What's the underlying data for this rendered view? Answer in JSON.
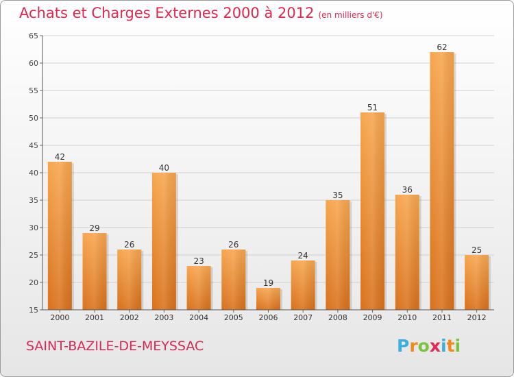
{
  "header": {
    "title": "Achats et Charges Externes 2000 à 2012",
    "unit": "(en milliers d'€)"
  },
  "footer": {
    "commune": "SAINT-BAZILE-DE-MEYSSAC",
    "logo_letters": [
      "P",
      "r",
      "o",
      "x",
      "i",
      "t",
      "i"
    ],
    "logo_colors": [
      "#3ab0e0",
      "#f08a1a",
      "#7cc242",
      "#e02a55",
      "#3ab0e0",
      "#f08a1a",
      "#7cc242"
    ]
  },
  "chart_data": {
    "type": "bar",
    "categories": [
      "2000",
      "2001",
      "2002",
      "2003",
      "2004",
      "2005",
      "2006",
      "2007",
      "2008",
      "2009",
      "2010",
      "2011",
      "2012"
    ],
    "values": [
      42,
      29,
      26,
      40,
      23,
      26,
      19,
      24,
      35,
      51,
      36,
      62,
      25
    ],
    "title": "Achats et Charges Externes 2000 à 2012",
    "subtitle": "(en milliers d'€)",
    "xlabel": "",
    "ylabel": "",
    "ylim": [
      15,
      65
    ],
    "yticks": [
      15,
      20,
      25,
      30,
      35,
      40,
      45,
      50,
      55,
      60,
      65
    ],
    "grid": true,
    "bar_color": "#f09640",
    "legend": "none"
  }
}
